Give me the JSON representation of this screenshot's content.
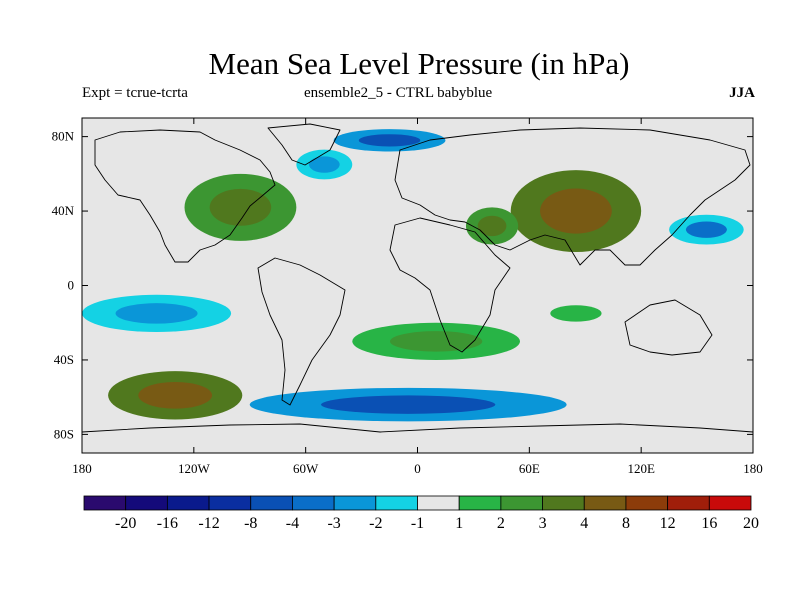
{
  "figure": {
    "title": "Mean Sea Level Pressure (in hPa)",
    "subtitle_left": "Expt = tcrue-tcrta",
    "subtitle_center": "ensemble2_5 - CTRL babyblue",
    "subtitle_right": "JJA"
  },
  "chart_data": {
    "type": "heatmap",
    "projection": "cylindrical-equidistant",
    "xlim": [
      -180,
      180
    ],
    "ylim": [
      -90,
      90
    ],
    "xticks": [
      {
        "value": -180,
        "label": "180"
      },
      {
        "value": -120,
        "label": "120W"
      },
      {
        "value": -60,
        "label": "60W"
      },
      {
        "value": 0,
        "label": "0"
      },
      {
        "value": 60,
        "label": "60E"
      },
      {
        "value": 120,
        "label": "120E"
      },
      {
        "value": 180,
        "label": "180"
      }
    ],
    "yticks": [
      {
        "value": 80,
        "label": "80N"
      },
      {
        "value": 40,
        "label": "40N"
      },
      {
        "value": 0,
        "label": "0"
      },
      {
        "value": -40,
        "label": "40S"
      },
      {
        "value": -80,
        "label": "80S"
      }
    ],
    "colorbar": {
      "levels": [
        "-20",
        "-16",
        "-12",
        "-8",
        "-4",
        "-3",
        "-2",
        "-1",
        "1",
        "2",
        "3",
        "4",
        "8",
        "12",
        "16",
        "20"
      ],
      "colors": [
        "#2a0a6e",
        "#140a7a",
        "#0a1a8c",
        "#0a2ea0",
        "#0a50b4",
        "#0a6ec8",
        "#0a96d8",
        "#14d2e4",
        "#e6e6e6",
        "#28b446",
        "#3c9632",
        "#50781e",
        "#785a14",
        "#8c3c0a",
        "#a01e0a",
        "#c80a0a"
      ]
    },
    "regions": [
      {
        "name": "S Pacific positive max",
        "lon": -130,
        "lat": -59,
        "rx": 36,
        "ry": 13,
        "level": "4 to 8"
      },
      {
        "name": "N America positive",
        "lon": -95,
        "lat": 42,
        "rx": 30,
        "ry": 18,
        "level": "3 to 4"
      },
      {
        "name": "Central Asia positive max",
        "lon": 85,
        "lat": 40,
        "rx": 35,
        "ry": 22,
        "level": "4 to 8"
      },
      {
        "name": "Middle East positive",
        "lon": 40,
        "lat": 32,
        "rx": 14,
        "ry": 10,
        "level": "3 to 4"
      },
      {
        "name": "South Atlantic positive",
        "lon": 10,
        "lat": -30,
        "rx": 45,
        "ry": 10,
        "level": "2 to 3"
      },
      {
        "name": "Indian Ocean positive",
        "lon": 85,
        "lat": -15,
        "rx": 25,
        "ry": 8,
        "level": "1 to 2"
      },
      {
        "name": "N Atlantic negative",
        "lon": -50,
        "lat": 65,
        "rx": 15,
        "ry": 8,
        "level": "-1 to -2"
      },
      {
        "name": "Arctic negative",
        "lon": -15,
        "lat": 78,
        "rx": 30,
        "ry": 6,
        "level": "-2 to -4"
      },
      {
        "name": "Southern Ocean negative band",
        "lon": -5,
        "lat": -64,
        "rx": 85,
        "ry": 9,
        "level": "-2 to -4"
      },
      {
        "name": "Tropical E Pacific negative",
        "lon": -140,
        "lat": -15,
        "rx": 40,
        "ry": 10,
        "level": "-1 to -2"
      },
      {
        "name": "NW Pacific negative",
        "lon": 155,
        "lat": 30,
        "rx": 20,
        "ry": 8,
        "level": "-1 to -3"
      }
    ],
    "grid": false,
    "legend": "bottom"
  }
}
